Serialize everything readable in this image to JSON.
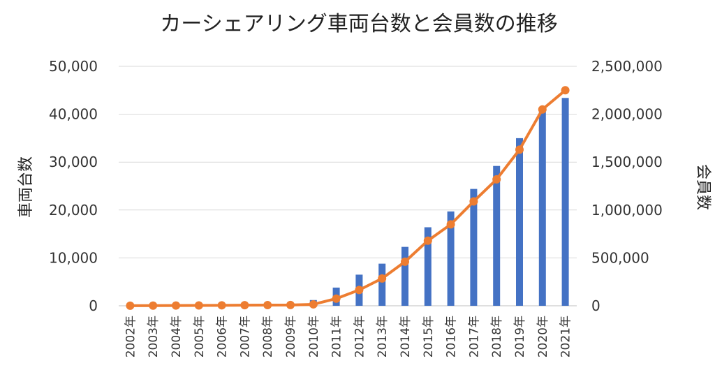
{
  "chart_data": {
    "type": "bar+line",
    "title": "カーシェアリング車両台数と会員数の推移",
    "categories": [
      "2002年",
      "2003年",
      "2004年",
      "2005年",
      "2006年",
      "2007年",
      "2008年",
      "2009年",
      "2010年",
      "2011年",
      "2012年",
      "2013年",
      "2014年",
      "2015年",
      "2016年",
      "2017年",
      "2018年",
      "2019年",
      "2020年",
      "2021年"
    ],
    "left_axis": {
      "label": "車両台数",
      "ylim": [
        0,
        50000
      ],
      "ticks": [
        "0",
        "10,000",
        "20,000",
        "30,000",
        "40,000",
        "50,000"
      ],
      "tick_values": [
        0,
        10000,
        20000,
        30000,
        40000,
        50000
      ]
    },
    "right_axis": {
      "label": "会員数",
      "ylim": [
        0,
        2500000
      ],
      "ticks": [
        "0",
        "500,000",
        "1,000,000",
        "1,500,000",
        "2,000,000",
        "2,500,000"
      ],
      "tick_values": [
        0,
        500000,
        1000000,
        1500000,
        2000000,
        2500000
      ]
    },
    "series": [
      {
        "type": "bar",
        "axis": "left",
        "color": "#4472C4",
        "values": [
          20,
          20,
          30,
          30,
          50,
          60,
          80,
          100,
          1200,
          3800,
          6500,
          8800,
          12300,
          16400,
          19700,
          24400,
          29200,
          35000,
          40900,
          43400
        ]
      },
      {
        "type": "line",
        "axis": "right",
        "color": "#ED7D31",
        "values": [
          1000,
          2000,
          3000,
          4000,
          5000,
          6000,
          7000,
          8000,
          15000,
          75000,
          165000,
          285000,
          460000,
          680000,
          850000,
          1090000,
          1320000,
          1630000,
          2050000,
          2250000
        ]
      }
    ],
    "grid": true,
    "legend": "none"
  }
}
